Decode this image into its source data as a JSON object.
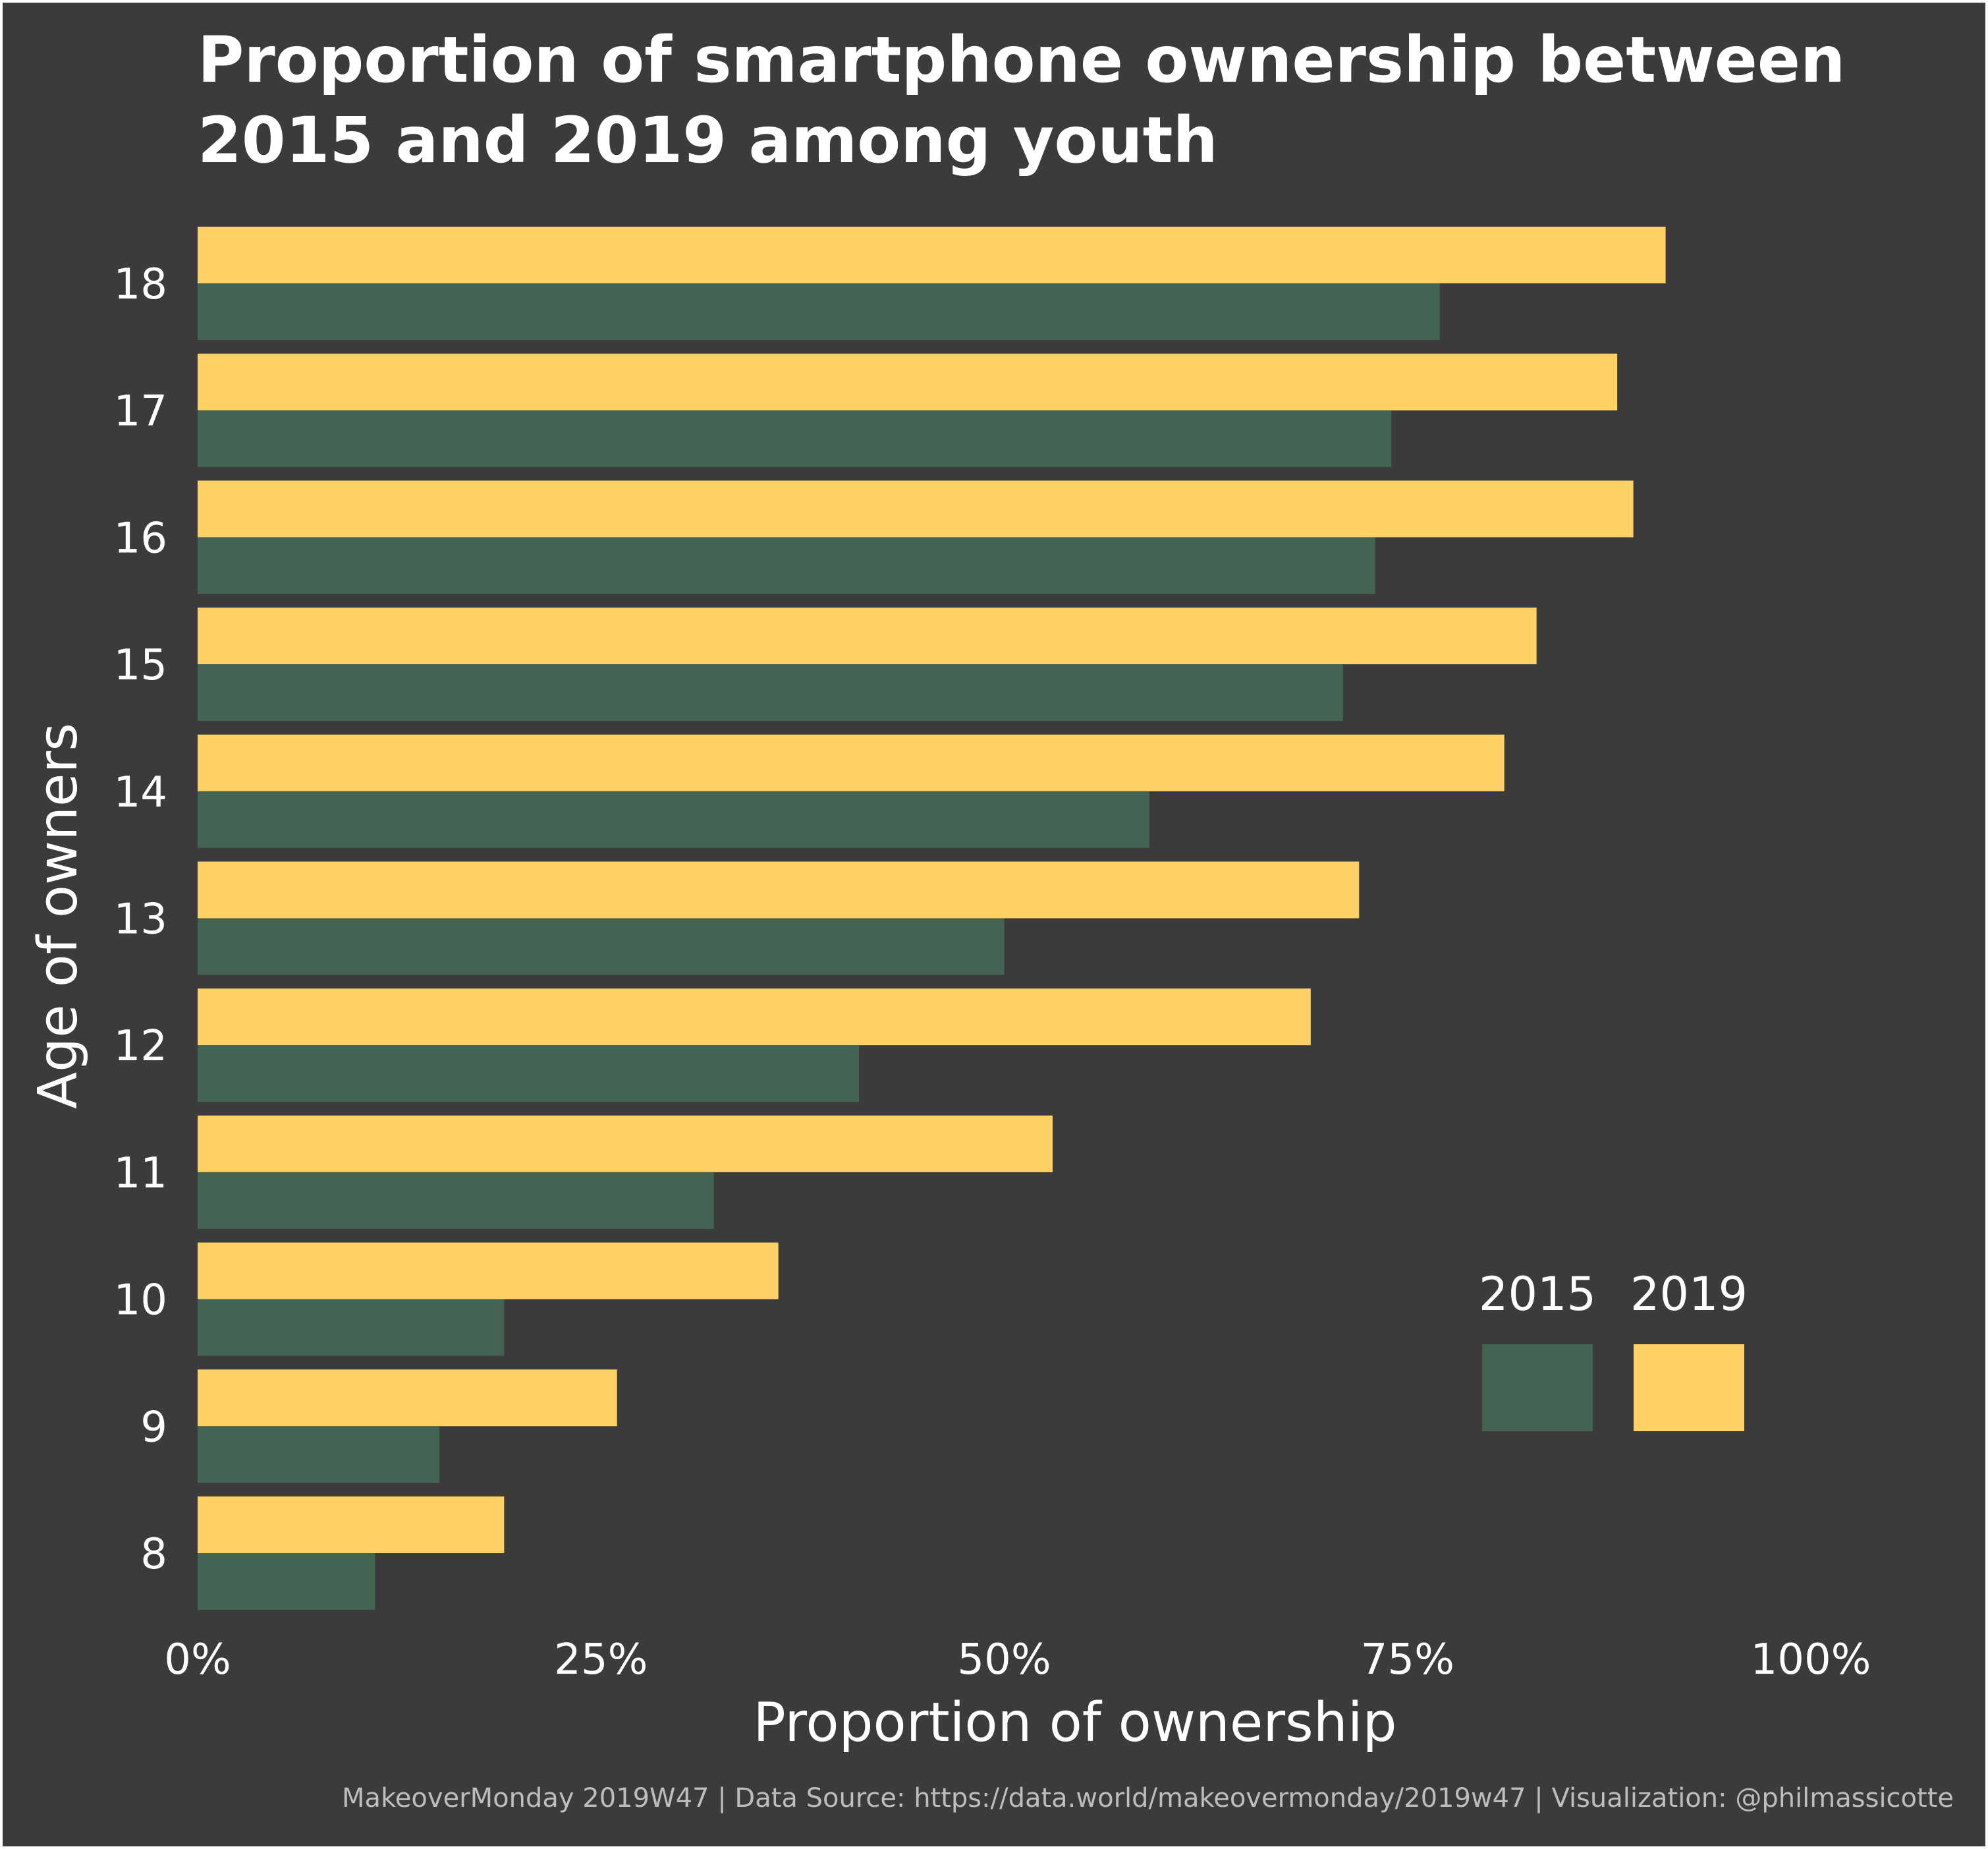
{
  "chart_data": {
    "type": "bar",
    "orientation": "horizontal",
    "title_lines": [
      "Proportion of smartphone ownership between",
      "2015 and 2019 among youth"
    ],
    "xlabel": "Proportion of ownership",
    "ylabel": "Age of owners",
    "categories": [
      "8",
      "9",
      "10",
      "11",
      "12",
      "13",
      "14",
      "15",
      "16",
      "17",
      "18"
    ],
    "xlim": [
      0,
      1
    ],
    "x_ticks": [
      {
        "value": 0,
        "label": "0%"
      },
      {
        "value": 0.25,
        "label": "25%"
      },
      {
        "value": 0.5,
        "label": "50%"
      },
      {
        "value": 0.75,
        "label": "75%"
      },
      {
        "value": 1,
        "label": "100%"
      }
    ],
    "grid": false,
    "legend_position": "bottom-right",
    "series": [
      {
        "name": "2015",
        "color": "#456353",
        "values": [
          0.11,
          0.15,
          0.19,
          0.32,
          0.41,
          0.5,
          0.59,
          0.71,
          0.73,
          0.74,
          0.77
        ]
      },
      {
        "name": "2019",
        "color": "#fdd165",
        "values": [
          0.19,
          0.26,
          0.36,
          0.53,
          0.69,
          0.72,
          0.81,
          0.83,
          0.89,
          0.88,
          0.91
        ]
      }
    ],
    "caption": "MakeoverMonday 2019W47 | Data Source: https://data.world/makeovermonday/2019w47 | Visualization: @philmassicotte"
  },
  "colors": {
    "background": "#3b3b3b",
    "text": "#ffffff",
    "caption": "#bdbdbd"
  }
}
